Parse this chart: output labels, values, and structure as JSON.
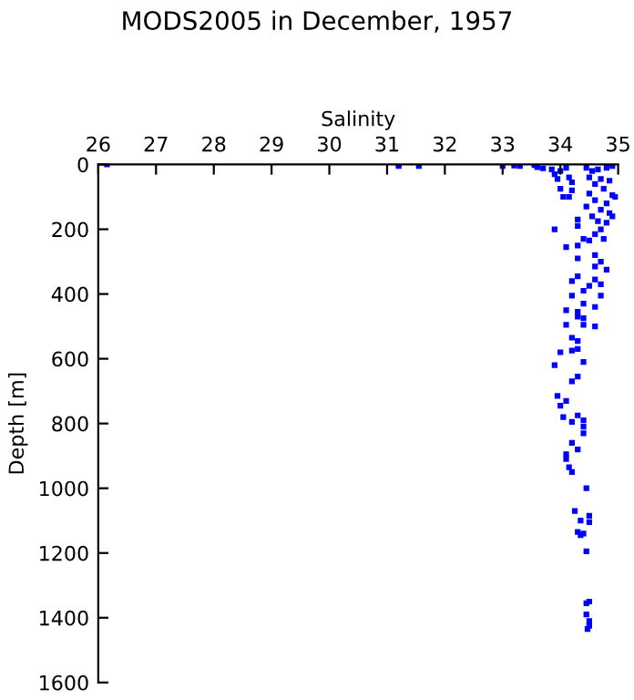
{
  "chart_data": {
    "type": "scatter",
    "title": "MODS2005 in December, 1957",
    "xlabel": "Salinity",
    "ylabel": "Depth [m]",
    "xlim": [
      26,
      35
    ],
    "xticks": [
      26,
      27,
      28,
      29,
      30,
      31,
      32,
      33,
      34,
      35
    ],
    "ylim": [
      1600,
      0
    ],
    "yticks": [
      0,
      200,
      400,
      600,
      800,
      1000,
      1200,
      1400,
      1600
    ],
    "grid": false,
    "marker": "square",
    "series": [
      {
        "color": "#0000ff",
        "x": [
          26.15,
          31.2,
          31.2,
          31.55,
          33.0,
          33.2,
          33.3,
          33.55,
          33.6,
          33.7,
          33.85,
          33.9,
          33.95,
          34.0,
          34.1,
          34.15,
          34.2,
          34.0,
          34.2,
          34.05,
          34.15,
          34.45,
          34.55,
          34.65,
          34.8,
          34.9,
          34.5,
          34.7,
          34.85,
          34.6,
          34.75,
          34.9,
          34.95,
          34.5,
          34.6,
          34.8,
          34.45,
          34.7,
          34.85,
          34.55,
          34.65,
          34.8,
          34.3,
          34.9,
          34.75,
          34.5,
          33.9,
          34.3,
          34.7,
          34.6,
          34.1,
          34.3,
          34.4,
          34.3,
          34.6,
          34.7,
          34.8,
          34.6,
          34.2,
          34.3,
          34.6,
          34.5,
          34.7,
          34.2,
          34.7,
          34.4,
          34.4,
          34.6,
          34.1,
          34.3,
          34.3,
          34.4,
          34.1,
          34.4,
          34.6,
          34.3,
          34.2,
          34.0,
          34.2,
          34.3,
          34.4,
          33.9,
          34.3,
          34.2,
          33.95,
          34.0,
          34.1,
          34.3,
          34.05,
          34.2,
          34.4,
          34.4,
          34.4,
          34.2,
          34.3,
          34.1,
          34.1,
          34.15,
          34.2,
          34.45,
          34.25,
          34.35,
          34.5,
          34.5,
          34.3,
          34.35,
          34.4,
          34.45,
          34.5,
          34.45,
          34.45,
          34.5,
          34.5,
          34.47
        ],
        "values": [
          0,
          0,
          5,
          5,
          5,
          3,
          5,
          2,
          8,
          12,
          15,
          30,
          45,
          20,
          10,
          40,
          55,
          75,
          80,
          100,
          100,
          10,
          20,
          15,
          10,
          5,
          40,
          45,
          50,
          60,
          75,
          95,
          100,
          90,
          110,
          120,
          130,
          140,
          150,
          160,
          175,
          180,
          170,
          160,
          230,
          235,
          200,
          190,
          200,
          215,
          255,
          250,
          230,
          290,
          280,
          300,
          325,
          315,
          360,
          345,
          355,
          375,
          370,
          405,
          405,
          390,
          430,
          440,
          450,
          455,
          470,
          475,
          495,
          495,
          500,
          545,
          535,
          580,
          575,
          570,
          610,
          620,
          655,
          670,
          715,
          745,
          730,
          775,
          780,
          795,
          790,
          810,
          830,
          860,
          880,
          895,
          910,
          935,
          950,
          1000,
          1070,
          1100,
          1085,
          1105,
          1135,
          1145,
          1140,
          1195,
          1350,
          1355,
          1390,
          1410,
          1425,
          1435
        ]
      }
    ]
  }
}
